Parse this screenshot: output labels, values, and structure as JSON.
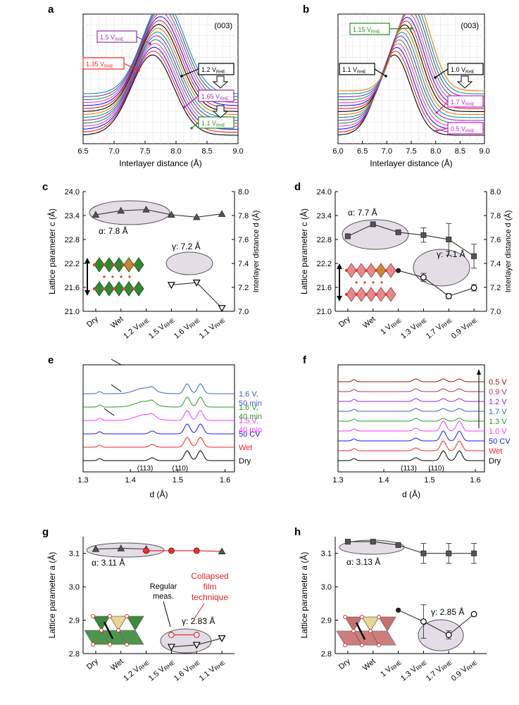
{
  "chart_data": [
    {
      "panel": "a",
      "type": "line",
      "title": "(003)",
      "xlabel": "Interlayer distance (Å)",
      "ylabel": "",
      "xlim": [
        6.5,
        9.0
      ],
      "xticks": [
        "6.5",
        "7.0",
        "7.5",
        "8.0",
        "8.5",
        "9.0"
      ],
      "series_count": 15,
      "peak_start": 7.8,
      "peak_end": 7.62,
      "series_colors": [
        "#000000",
        "#ff2020",
        "#1a1aff",
        "#ff33ff",
        "#2a9a2a",
        "#8a2be2",
        "#00a0a0",
        "#ff7700"
      ],
      "annotations": [
        {
          "label": "1.5 V",
          "sub": "RHE",
          "color": "#9b30b0"
        },
        {
          "label": "1.35 V",
          "sub": "RHE",
          "color": "#ff2020"
        },
        {
          "label": "1.2 V",
          "sub": "RHE",
          "color": "#000000"
        },
        {
          "label": "1.65 V",
          "sub": "RHE",
          "color": "#9b30b0"
        },
        {
          "label": "1.1 V",
          "sub": "RHE",
          "color": "#2a8a2a"
        }
      ]
    },
    {
      "panel": "b",
      "type": "line",
      "title": "(003)",
      "xlabel": "Interlayer distance (Å)",
      "ylabel": "",
      "xlim": [
        6.0,
        9.0
      ],
      "xticks": [
        "6.0",
        "6.5",
        "7.0",
        "7.5",
        "8.0",
        "8.5",
        "9.0"
      ],
      "series_count": 16,
      "peak_start": 7.55,
      "peak_end": 7.15,
      "series_colors": [
        "#000000",
        "#ff2020",
        "#1a1aff",
        "#ff33ff",
        "#2a9a2a",
        "#8a2be2",
        "#00a0a0",
        "#ff7700"
      ],
      "annotations": [
        {
          "label": "1.15 V",
          "sub": "RHE",
          "color": "#2a8a2a"
        },
        {
          "label": "1.1 V",
          "sub": "RHE",
          "color": "#000000"
        },
        {
          "label": "1.0 V",
          "sub": "RHE",
          "color": "#000000"
        },
        {
          "label": "1.7 V",
          "sub": "RHE",
          "color": "#cc22cc"
        },
        {
          "label": "0.5 V",
          "sub": "RHE",
          "color": "#cc22cc"
        }
      ]
    },
    {
      "panel": "c",
      "type": "line",
      "categories": [
        "Dry",
        "Wet",
        "1.2 V",
        "1.5 V",
        "1.6 V",
        "1.1 V"
      ],
      "cat_sub": [
        "",
        "",
        "RHE",
        "RHE",
        "RHE",
        "RHE"
      ],
      "ylabel": "Lattice parameter c (Å)",
      "y2label": "Interlayer distance d (Å)",
      "ylim": [
        21.0,
        24.0
      ],
      "yticks": [
        "21.0",
        "21.6",
        "22.2",
        "22.8",
        "23.4",
        "24.0"
      ],
      "y2lim": [
        7.0,
        8.0
      ],
      "y2ticks": [
        "7.0",
        "7.2",
        "7.4",
        "7.6",
        "7.8",
        "8.0"
      ],
      "series": [
        {
          "name": "α",
          "values": [
            23.42,
            23.52,
            23.55,
            23.42,
            23.36,
            23.44
          ],
          "marker": "filled-triangle"
        },
        {
          "name": "γ",
          "values": [
            null,
            null,
            null,
            21.66,
            21.72,
            21.08
          ],
          "marker": "open-triangle-down"
        }
      ],
      "alpha_label": "α: 7.8 Å",
      "gamma_label": "γ: 7.2 Å"
    },
    {
      "panel": "d",
      "type": "line",
      "categories": [
        "Dry",
        "Wet",
        "1 V",
        "1.3 V",
        "1.7 V",
        "0.9 V"
      ],
      "cat_sub": [
        "",
        "",
        "RHE",
        "RHE",
        "RHE",
        "RHE"
      ],
      "ylabel": "Lattice parameter c (Å)",
      "y2label": "Interlayer distance d (Å)",
      "ylim": [
        21.0,
        24.0
      ],
      "yticks": [
        "21.0",
        "21.6",
        "22.2",
        "22.8",
        "23.4",
        "24.0"
      ],
      "y2lim": [
        7.0,
        8.0
      ],
      "y2ticks": [
        "7.0",
        "7.2",
        "7.4",
        "7.6",
        "7.8",
        "8.0"
      ],
      "series": [
        {
          "name": "α",
          "values": [
            22.88,
            23.18,
            22.98,
            22.91,
            22.8,
            22.38
          ],
          "errors": [
            0,
            0,
            0.05,
            0.18,
            0.4,
            0.3
          ],
          "marker": "filled-square"
        },
        {
          "name": "γ",
          "values": [
            null,
            null,
            22.02,
            21.85,
            21.38,
            21.59
          ],
          "errors": [
            0,
            0,
            0,
            0.1,
            0.06,
            0.08
          ],
          "marker": "open-circle"
        }
      ],
      "alpha_label": "α: 7.7 Å",
      "gamma_label": "γ: 7.1 Å"
    },
    {
      "panel": "e",
      "type": "line",
      "xlabel": "d (Å)",
      "xlim": [
        1.3,
        1.62
      ],
      "xticks": [
        "1.3",
        "1.4",
        "1.5",
        "1.6"
      ],
      "traces": [
        {
          "label": "Dry",
          "color": "#000000"
        },
        {
          "label": "Wet",
          "color": "#ff2020"
        },
        {
          "label": "50 CV",
          "color": "#1a1aff"
        },
        {
          "label": "1.5 V,",
          "label2": "40 min",
          "color": "#ff33ff"
        },
        {
          "label": "1.6 V,",
          "label2": "40 min",
          "color": "#2a9a2a"
        },
        {
          "label": "1.6 V,",
          "label2": "50 min",
          "color": "#4060c0"
        }
      ],
      "peaks": [
        {
          "label": "(113)",
          "d": 1.446
        },
        {
          "label": "(110)",
          "d": 1.52
        },
        {
          "label": "(110)",
          "d": 1.548
        }
      ]
    },
    {
      "panel": "f",
      "type": "line",
      "xlabel": "d (Å)",
      "xlim": [
        1.3,
        1.62
      ],
      "xticks": [
        "1.3",
        "1.4",
        "1.5",
        "1.6"
      ],
      "traces": [
        {
          "label": "Dry",
          "color": "#000000"
        },
        {
          "label": "Wet",
          "color": "#ff2020"
        },
        {
          "label": "50 CV",
          "color": "#1a1aff"
        },
        {
          "label": "1.0 V",
          "color": "#ff33ff"
        },
        {
          "label": "1.3 V",
          "color": "#2a9a2a"
        },
        {
          "label": "1.7 V",
          "color": "#4060c0"
        },
        {
          "label": "1.2 V",
          "color": "#8a2be2"
        },
        {
          "label": "0.9 V",
          "color": "#b03060"
        },
        {
          "label": "0.5 V",
          "color": "#a01010"
        }
      ],
      "peaks": [
        {
          "label": "(113)",
          "d": 1.47
        },
        {
          "label": "(110)",
          "d": 1.53
        },
        {
          "label": "(110)",
          "d": 1.565
        }
      ]
    },
    {
      "panel": "g",
      "type": "line",
      "categories": [
        "Dry",
        "Wet",
        "1.2 V",
        "1.5 V",
        "1.6 V",
        "1.1 V"
      ],
      "cat_sub": [
        "",
        "",
        "RHE",
        "RHE",
        "RHE",
        "RHE"
      ],
      "ylabel": "Lattice parameter a (Å)",
      "ylim": [
        2.8,
        3.15
      ],
      "yticks": [
        "2.8",
        "2.9",
        "3.0",
        "3.1"
      ],
      "series": [
        {
          "name": "α",
          "values": [
            3.113,
            3.115,
            3.113,
            null,
            null,
            null
          ],
          "marker": "filled-triangle"
        },
        {
          "name": "α collapsed",
          "values": [
            null,
            null,
            3.108,
            3.108,
            3.108,
            3.106
          ],
          "marker": "mixed"
        },
        {
          "name": "γ",
          "values": [
            null,
            null,
            null,
            2.82,
            2.826,
            2.846
          ],
          "marker": "open-triangle-down"
        },
        {
          "name": "γ collapsed",
          "values": [
            null,
            null,
            null,
            2.856,
            2.856,
            null
          ],
          "marker": "open-circle-red"
        }
      ],
      "alpha_label": "α: 3.11 Å",
      "gamma_label": "γ: 2.83 Å",
      "note_regular": [
        "Regular",
        "meas."
      ],
      "note_collapsed": [
        "Collapsed",
        "film",
        "technique"
      ]
    },
    {
      "panel": "h",
      "type": "line",
      "categories": [
        "Dry",
        "Wet",
        "1 V",
        "1.3 V",
        "1.7 V",
        "0.9 V"
      ],
      "cat_sub": [
        "",
        "",
        "RHE",
        "RHE",
        "RHE",
        "RHE"
      ],
      "ylabel": "Lattice parameter a (Å)",
      "ylim": [
        2.8,
        3.15
      ],
      "yticks": [
        "2.8",
        "2.9",
        "3.0",
        "3.1"
      ],
      "series": [
        {
          "name": "α",
          "values": [
            3.135,
            3.135,
            3.125,
            3.1,
            3.1,
            3.1
          ],
          "errors": [
            0,
            0,
            0,
            0.03,
            0.03,
            0.03
          ],
          "marker": "filled-square"
        },
        {
          "name": "γ",
          "values": [
            null,
            null,
            2.93,
            2.896,
            2.856,
            2.918
          ],
          "errors": [
            0,
            0,
            0,
            0.05,
            0.012,
            0
          ],
          "marker": "open-circle"
        }
      ],
      "alpha_label": "α: 3.13 Å",
      "gamma_label": "γ: 2.85 Å"
    }
  ]
}
